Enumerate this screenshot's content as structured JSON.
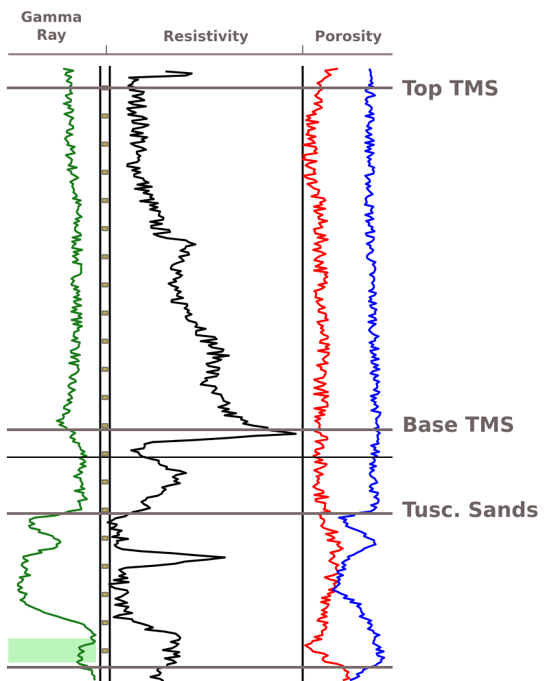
{
  "tracks": {
    "gamma_ray": {
      "label_line1": "Gamma",
      "label_line2": "Ray",
      "curve_color": "#1b7d1b"
    },
    "resistivity": {
      "label": "Resistivity",
      "curve_color": "#000000"
    },
    "porosity": {
      "label": "Porosity",
      "curves": [
        {
          "color": "#ff0000"
        },
        {
          "color": "#0000ff"
        }
      ]
    }
  },
  "markers": [
    {
      "label": "Top TMS",
      "line_color": "#7b6c6c"
    },
    {
      "label": "Base TMS",
      "line_color": "#7b6c6c"
    },
    {
      "label": "",
      "line_color": "#000000"
    },
    {
      "label": "Tusc. Sands",
      "line_color": "#7b6c6c"
    },
    {
      "label": "",
      "line_color": "#7b6c6c"
    }
  ],
  "colors": {
    "text": "#6e6262",
    "header_rule": "#8a7c7c",
    "shale_fill": "#90ee90"
  }
}
